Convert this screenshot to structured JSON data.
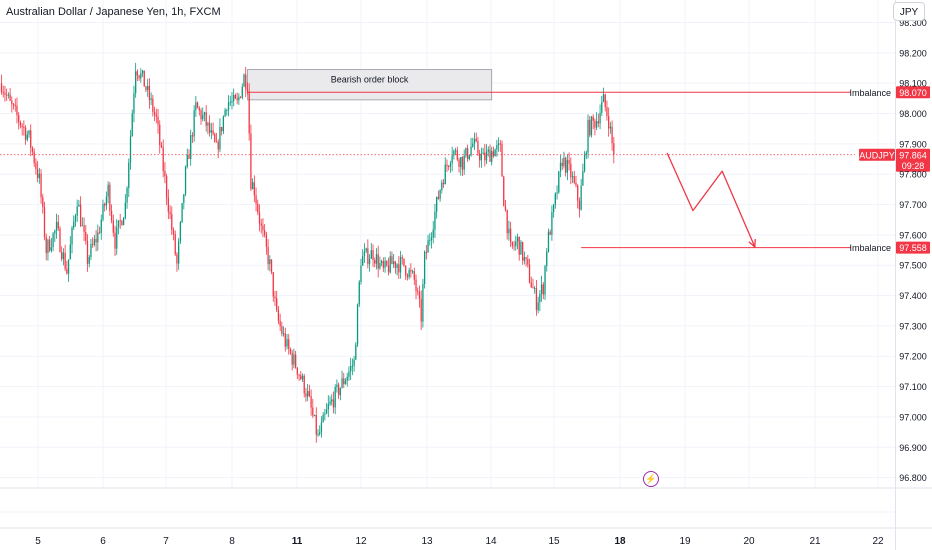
{
  "chart_data": {
    "type": "candlestick",
    "title": "Australian Dollar / Japanese Yen, 1h, FXCM",
    "currency": "JPY",
    "symbol": "AUDJPY",
    "last_price": 97.864,
    "countdown": "09:28",
    "ylim": [
      96.78,
      98.31
    ],
    "yticks": [
      96.8,
      96.9,
      97.0,
      97.1,
      97.2,
      97.3,
      97.4,
      97.5,
      97.6,
      97.7,
      97.8,
      97.9,
      98.0,
      98.1,
      98.2,
      98.3
    ],
    "x_tick_labels": [
      "5",
      "6",
      "7",
      "8",
      "11",
      "12",
      "13",
      "14",
      "15",
      "18",
      "19",
      "20",
      "21",
      "22"
    ],
    "x_tick_bold": [
      "11",
      "18"
    ],
    "colors": {
      "up": "#089981",
      "down": "#f23645",
      "accent": "#f23645",
      "price_line": "#f23645",
      "block_fill": "#e6e6e9"
    },
    "annotations": {
      "order_block": {
        "label": "Bearish order block",
        "top": 98.145,
        "bottom": 98.045,
        "start_bar": 143,
        "end_bar": 285
      },
      "imbalances": [
        {
          "label": "Imbalance",
          "price": 98.07,
          "price_label": "98.070",
          "start_bar": 143
        },
        {
          "label": "Imbalance",
          "price": 97.558,
          "price_label": "97.558",
          "start_bar": 337
        }
      ],
      "projection": [
        {
          "bar": 387,
          "price": 97.87
        },
        {
          "bar": 402,
          "price": 97.68
        },
        {
          "bar": 419,
          "price": 97.81
        },
        {
          "bar": 438,
          "price": 97.56
        }
      ]
    },
    "path": [
      [
        0,
        98.1
      ],
      [
        5,
        98.03
      ],
      [
        10,
        97.98
      ],
      [
        16,
        97.92
      ],
      [
        22,
        97.78
      ],
      [
        26,
        97.55
      ],
      [
        32,
        97.62
      ],
      [
        38,
        97.48
      ],
      [
        44,
        97.72
      ],
      [
        50,
        97.52
      ],
      [
        56,
        97.6
      ],
      [
        62,
        97.75
      ],
      [
        66,
        97.58
      ],
      [
        72,
        97.7
      ],
      [
        78,
        98.16
      ],
      [
        83,
        98.1
      ],
      [
        90,
        97.98
      ],
      [
        96,
        97.74
      ],
      [
        102,
        97.5
      ],
      [
        107,
        97.8
      ],
      [
        113,
        98.02
      ],
      [
        118,
        97.98
      ],
      [
        125,
        97.88
      ],
      [
        131,
        98.04
      ],
      [
        137,
        98.03
      ],
      [
        141,
        98.12
      ],
      [
        143,
        98.1
      ],
      [
        145,
        97.78
      ],
      [
        147,
        97.75
      ],
      [
        151,
        97.62
      ],
      [
        156,
        97.5
      ],
      [
        160,
        97.33
      ],
      [
        166,
        97.23
      ],
      [
        172,
        97.16
      ],
      [
        178,
        97.07
      ],
      [
        184,
        96.93
      ],
      [
        190,
        97.03
      ],
      [
        196,
        97.09
      ],
      [
        201,
        97.14
      ],
      [
        205,
        97.18
      ],
      [
        209,
        97.52
      ],
      [
        216,
        97.54
      ],
      [
        222,
        97.48
      ],
      [
        228,
        97.51
      ],
      [
        234,
        97.5
      ],
      [
        240,
        97.45
      ],
      [
        244,
        97.33
      ],
      [
        246,
        97.52
      ],
      [
        250,
        97.62
      ],
      [
        256,
        97.78
      ],
      [
        262,
        97.88
      ],
      [
        268,
        97.84
      ],
      [
        274,
        97.9
      ],
      [
        280,
        97.85
      ],
      [
        286,
        97.88
      ],
      [
        290,
        97.88
      ],
      [
        292,
        97.72
      ],
      [
        296,
        97.55
      ],
      [
        300,
        97.58
      ],
      [
        305,
        97.5
      ],
      [
        311,
        97.38
      ],
      [
        315,
        97.43
      ],
      [
        317,
        97.56
      ],
      [
        321,
        97.68
      ],
      [
        326,
        97.85
      ],
      [
        331,
        97.8
      ],
      [
        336,
        97.7
      ],
      [
        341,
        97.95
      ],
      [
        346,
        97.98
      ],
      [
        350,
        98.04
      ],
      [
        353,
        97.98
      ],
      [
        356,
        97.86
      ]
    ]
  }
}
